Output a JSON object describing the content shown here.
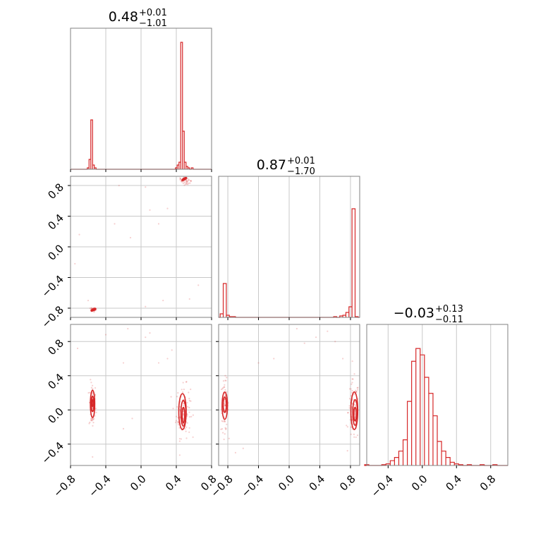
{
  "chart_data": {
    "type": "corner",
    "color": "#d62728",
    "parameters": [
      {
        "title": {
          "value": "0.48",
          "plus": "+0.01",
          "minus": "−1.01"
        },
        "range": [
          -0.8,
          0.8
        ],
        "ticks": [
          "−0.8",
          "−0.4",
          "0.0",
          "0.4",
          "0.8"
        ],
        "tick_values": [
          -0.8,
          -0.4,
          0.0,
          0.4,
          0.8
        ]
      },
      {
        "title": {
          "value": "0.87",
          "plus": "+0.01",
          "minus": "−1.70"
        },
        "range": [
          -0.92,
          0.92
        ],
        "ticks": [
          "−0.8",
          "−0.4",
          "0.0",
          "0.4",
          "0.8"
        ],
        "tick_values": [
          -0.8,
          -0.4,
          0.0,
          0.4,
          0.8
        ]
      },
      {
        "title": {
          "value": "−0.03",
          "plus": "+0.13",
          "minus": "−0.11"
        },
        "range": [
          -0.65,
          1.0
        ],
        "ticks": [
          "−0.4",
          "0.0",
          "0.4",
          "0.8"
        ],
        "tick_values": [
          -0.4,
          0.0,
          0.4,
          0.8
        ]
      }
    ],
    "histograms": [
      {
        "param": 0,
        "bins": [
          {
            "x": -0.6,
            "y": 1
          },
          {
            "x": -0.58,
            "y": 7
          },
          {
            "x": -0.56,
            "y": 35
          },
          {
            "x": -0.54,
            "y": 3
          },
          {
            "x": -0.52,
            "y": 1
          },
          {
            "x": 0.4,
            "y": 1
          },
          {
            "x": 0.42,
            "y": 3
          },
          {
            "x": 0.44,
            "y": 5
          },
          {
            "x": 0.46,
            "y": 90
          },
          {
            "x": 0.48,
            "y": 27
          },
          {
            "x": 0.5,
            "y": 5
          },
          {
            "x": 0.52,
            "y": 2
          },
          {
            "x": 0.54,
            "y": 1
          },
          {
            "x": 0.58,
            "y": 1
          }
        ],
        "ymax": 100
      },
      {
        "param": 1,
        "bins": [
          {
            "x": -0.88,
            "y": 5
          },
          {
            "x": -0.84,
            "y": 48
          },
          {
            "x": -0.8,
            "y": 3
          },
          {
            "x": -0.76,
            "y": 1
          },
          {
            "x": -0.72,
            "y": 1
          },
          {
            "x": 0.6,
            "y": 1
          },
          {
            "x": 0.68,
            "y": 2
          },
          {
            "x": 0.72,
            "y": 3
          },
          {
            "x": 0.76,
            "y": 7
          },
          {
            "x": 0.8,
            "y": 15
          },
          {
            "x": 0.84,
            "y": 154
          },
          {
            "x": 0.88,
            "y": 1
          }
        ],
        "ymax": 200
      },
      {
        "param": 2,
        "bins": [
          {
            "x": -0.65,
            "y": 0.5
          },
          {
            "x": -0.45,
            "y": 0.5
          },
          {
            "x": -0.4,
            "y": 1
          },
          {
            "x": -0.35,
            "y": 3
          },
          {
            "x": -0.3,
            "y": 5
          },
          {
            "x": -0.25,
            "y": 9
          },
          {
            "x": -0.2,
            "y": 16
          },
          {
            "x": -0.15,
            "y": 40
          },
          {
            "x": -0.1,
            "y": 65
          },
          {
            "x": -0.05,
            "y": 73
          },
          {
            "x": 0.0,
            "y": 69
          },
          {
            "x": 0.05,
            "y": 55
          },
          {
            "x": 0.1,
            "y": 45
          },
          {
            "x": 0.15,
            "y": 31
          },
          {
            "x": 0.2,
            "y": 15
          },
          {
            "x": 0.25,
            "y": 9
          },
          {
            "x": 0.3,
            "y": 5
          },
          {
            "x": 0.35,
            "y": 2
          },
          {
            "x": 0.4,
            "y": 1
          },
          {
            "x": 0.45,
            "y": 0.5
          },
          {
            "x": 0.55,
            "y": 0.5
          },
          {
            "x": 0.7,
            "y": 0.5
          },
          {
            "x": 0.85,
            "y": 0.5
          }
        ],
        "ymax": 88
      }
    ],
    "scatter_panels": [
      {
        "x_param": 0,
        "y_param": 1,
        "modes": [
          {
            "cx": -0.54,
            "cy": -0.82,
            "sx": 0.02,
            "sy": 0.012,
            "n": 30,
            "rot": -0.6
          },
          {
            "cx": 0.5,
            "cy": 0.86,
            "sx": 0.035,
            "sy": 0.025,
            "n": 45,
            "rot": -0.6
          }
        ],
        "outliers": [
          [
            -0.7,
            0.16
          ],
          [
            -0.75,
            -0.22
          ],
          [
            -0.6,
            -0.7
          ],
          [
            -0.3,
            0.3
          ],
          [
            -0.12,
            0.12
          ],
          [
            0.05,
            0.78
          ],
          [
            0.1,
            0.48
          ],
          [
            0.2,
            0.3
          ],
          [
            0.25,
            -0.7
          ],
          [
            0.3,
            0.5
          ],
          [
            0.55,
            -0.68
          ],
          [
            0.65,
            -0.5
          ],
          [
            -0.25,
            0.8
          ],
          [
            0.05,
            -0.78
          ]
        ],
        "contours": [
          {
            "cx": -0.54,
            "cy": -0.82,
            "rx": 0.03,
            "ry": 0.012,
            "rot": -25
          },
          {
            "cx": -0.54,
            "cy": -0.82,
            "rx": 0.018,
            "ry": 0.007,
            "rot": -25
          },
          {
            "cx": 0.49,
            "cy": 0.885,
            "rx": 0.03,
            "ry": 0.012,
            "rot": -30
          },
          {
            "cx": 0.49,
            "cy": 0.885,
            "rx": 0.018,
            "ry": 0.007,
            "rot": -30
          }
        ]
      },
      {
        "x_param": 0,
        "y_param": 2,
        "modes": [
          {
            "cx": -0.55,
            "cy": 0.05,
            "sx": 0.02,
            "sy": 0.14,
            "n": 80,
            "rot": 0
          },
          {
            "cx": 0.48,
            "cy": -0.02,
            "sx": 0.04,
            "sy": 0.15,
            "n": 110,
            "rot": 0
          }
        ],
        "outliers": [
          [
            -0.72,
            0.72
          ],
          [
            -0.4,
            0.88
          ],
          [
            -0.2,
            0.55
          ],
          [
            -0.15,
            0.95
          ],
          [
            0.05,
            0.85
          ],
          [
            0.1,
            0.9
          ],
          [
            0.2,
            0.55
          ],
          [
            0.3,
            0.6
          ],
          [
            -0.1,
            -0.1
          ],
          [
            -0.2,
            -0.22
          ],
          [
            0.35,
            0.7
          ],
          [
            -0.55,
            -0.55
          ]
        ],
        "contours": [
          {
            "cx": -0.55,
            "cy": 0.07,
            "rx": 0.025,
            "ry": 0.16,
            "rot": 0
          },
          {
            "cx": -0.55,
            "cy": 0.07,
            "rx": 0.015,
            "ry": 0.09,
            "rot": 0
          },
          {
            "cx": -0.55,
            "cy": 0.08,
            "rx": 0.007,
            "ry": 0.04,
            "rot": 0
          },
          {
            "cx": 0.47,
            "cy": -0.02,
            "rx": 0.042,
            "ry": 0.21,
            "rot": 0
          },
          {
            "cx": 0.48,
            "cy": -0.04,
            "rx": 0.028,
            "ry": 0.15,
            "rot": 0
          },
          {
            "cx": 0.48,
            "cy": -0.06,
            "rx": 0.014,
            "ry": 0.09,
            "rot": 0
          }
        ]
      },
      {
        "x_param": 1,
        "y_param": 2,
        "modes": [
          {
            "cx": -0.84,
            "cy": 0.05,
            "sx": 0.025,
            "sy": 0.15,
            "n": 80,
            "rot": 0
          },
          {
            "cx": 0.84,
            "cy": -0.02,
            "sx": 0.035,
            "sy": 0.18,
            "n": 110,
            "rot": 0
          }
        ],
        "outliers": [
          [
            -0.6,
            -0.45
          ],
          [
            -0.4,
            0.55
          ],
          [
            -0.2,
            0.6
          ],
          [
            0.2,
            0.78
          ],
          [
            0.35,
            0.85
          ],
          [
            0.5,
            0.92
          ],
          [
            0.6,
            0.8
          ],
          [
            0.7,
            0.6
          ],
          [
            -0.7,
            -0.5
          ],
          [
            0.1,
            0.95
          ]
        ],
        "contours": [
          {
            "cx": -0.84,
            "cy": 0.05,
            "rx": 0.035,
            "ry": 0.16,
            "rot": 0
          },
          {
            "cx": -0.84,
            "cy": 0.06,
            "rx": 0.02,
            "ry": 0.09,
            "rot": 0
          },
          {
            "cx": 0.85,
            "cy": -0.01,
            "rx": 0.045,
            "ry": 0.22,
            "rot": 0
          },
          {
            "cx": 0.86,
            "cy": -0.03,
            "rx": 0.03,
            "ry": 0.15,
            "rot": 0
          },
          {
            "cx": 0.86,
            "cy": -0.05,
            "rx": 0.015,
            "ry": 0.08,
            "rot": 0
          }
        ]
      }
    ],
    "grid": true,
    "legend": "none"
  }
}
